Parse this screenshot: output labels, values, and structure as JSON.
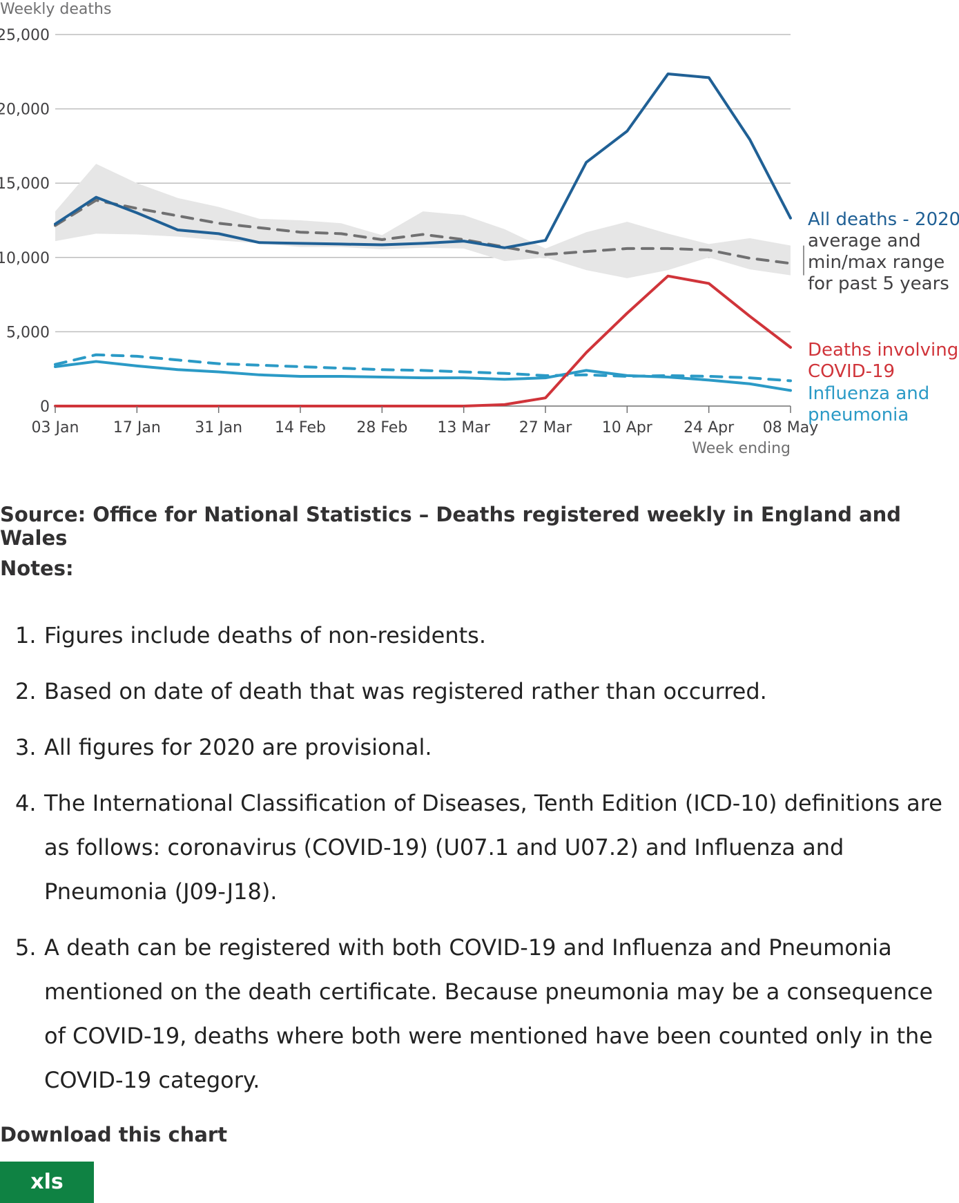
{
  "chart_data": {
    "type": "line",
    "ylabel": "Weekly deaths",
    "xlabel": "Week ending",
    "ylim": [
      0,
      25000
    ],
    "yticks": [
      0,
      5000,
      10000,
      15000,
      20000,
      25000
    ],
    "ytick_labels": [
      "0",
      "5,000",
      "10,000",
      "15,000",
      "20,000",
      "25,000"
    ],
    "xtick_labels": [
      "03 Jan",
      "17 Jan",
      "31 Jan",
      "14 Feb",
      "28 Feb",
      "13 Mar",
      "27 Mar",
      "10 Apr",
      "24 Apr",
      "08 May"
    ],
    "grid": "horizontal",
    "x": [
      "03 Jan",
      "10 Jan",
      "17 Jan",
      "24 Jan",
      "31 Jan",
      "07 Feb",
      "14 Feb",
      "21 Feb",
      "28 Feb",
      "06 Mar",
      "13 Mar",
      "20 Mar",
      "27 Mar",
      "03 Apr",
      "10 Apr",
      "17 Apr",
      "24 Apr",
      "01 May",
      "08 May"
    ],
    "series": [
      {
        "name": "All deaths - 2020",
        "color": "#206095",
        "style": "solid",
        "values": [
          12250,
          14050,
          13000,
          11850,
          11600,
          11000,
          10950,
          10900,
          10850,
          10950,
          11100,
          10650,
          11150,
          16400,
          18500,
          22350,
          22100,
          17950,
          12650
        ]
      },
      {
        "name": "average and min/max range for past 5 years",
        "color": "#707071",
        "style": "dashed",
        "values": [
          12150,
          13850,
          13300,
          12800,
          12300,
          12000,
          11700,
          11600,
          11200,
          11550,
          11200,
          10700,
          10200,
          10400,
          10600,
          10600,
          10500,
          9950,
          9600
        ],
        "range_min": [
          11100,
          11600,
          11550,
          11400,
          11150,
          10950,
          10700,
          10700,
          10550,
          10650,
          10600,
          9750,
          10000,
          9150,
          8600,
          9150,
          10000,
          9200,
          8800
        ],
        "range_max": [
          13100,
          16300,
          15000,
          14000,
          13400,
          12600,
          12500,
          12300,
          11500,
          13100,
          12850,
          11900,
          10600,
          11700,
          12400,
          11600,
          10900,
          11300,
          10800
        ]
      },
      {
        "name": "Deaths involving COVID-19",
        "color": "#d0343a",
        "style": "solid",
        "values": [
          0,
          0,
          0,
          0,
          0,
          0,
          0,
          0,
          0,
          0,
          0,
          100,
          550,
          3600,
          6250,
          8750,
          8250,
          6050,
          3950
        ]
      },
      {
        "name": "Influenza and pneumonia - 2020",
        "color": "#2b9ac6",
        "style": "solid",
        "values": [
          2650,
          3000,
          2700,
          2450,
          2300,
          2100,
          2000,
          2000,
          1950,
          1900,
          1900,
          1800,
          1900,
          2400,
          2050,
          1950,
          1750,
          1500,
          1050
        ]
      },
      {
        "name": "Influenza and pneumonia - average",
        "color": "#2b9ac6",
        "style": "dashed",
        "values": [
          2800,
          3450,
          3350,
          3100,
          2850,
          2750,
          2650,
          2550,
          2450,
          2400,
          2300,
          2200,
          2050,
          2100,
          2000,
          2050,
          2000,
          1900,
          1700
        ]
      }
    ],
    "line_labels": [
      {
        "text": "All deaths - 2020",
        "color": "#206095"
      },
      {
        "text": "average and",
        "color": "#414042"
      },
      {
        "text": "min/max range",
        "color": "#414042"
      },
      {
        "text": "for past 5 years",
        "color": "#414042"
      },
      {
        "text": "Deaths involving",
        "color": "#d0343a"
      },
      {
        "text": "COVID-19",
        "color": "#d0343a"
      },
      {
        "text": "Influenza and",
        "color": "#2b9ac6"
      },
      {
        "text": "pneumonia",
        "color": "#2b9ac6"
      }
    ]
  },
  "source_text": "Source: Office for National Statistics – Deaths registered weekly in England and Wales",
  "notes_heading": "Notes:",
  "notes": [
    {
      "num": "1.",
      "text": "Figures include deaths of non-residents."
    },
    {
      "num": "2.",
      "text": "Based on date of death that was registered rather than occurred."
    },
    {
      "num": "3.",
      "text": "All figures for 2020 are provisional."
    },
    {
      "num": "4.",
      "text": "The International Classification of Diseases, Tenth Edition (ICD-10) definitions are as follows: coronavirus (COVID-19) (U07.1 and U07.2) and Influenza and Pneumonia (J09-J18)."
    },
    {
      "num": "5.",
      "text": "A death can be registered with both COVID-19 and Influenza and Pneumonia mentioned on the death certificate. Because pneumonia may be a consequence of COVID-19, deaths where both were mentioned have been counted only in the COVID-19 category."
    }
  ],
  "download_heading": "Download this chart",
  "download_button_label": "xls",
  "colors": {
    "button_green": "#0f8243",
    "grid": "#bebebe",
    "range_fill": "#e6e6e6"
  }
}
